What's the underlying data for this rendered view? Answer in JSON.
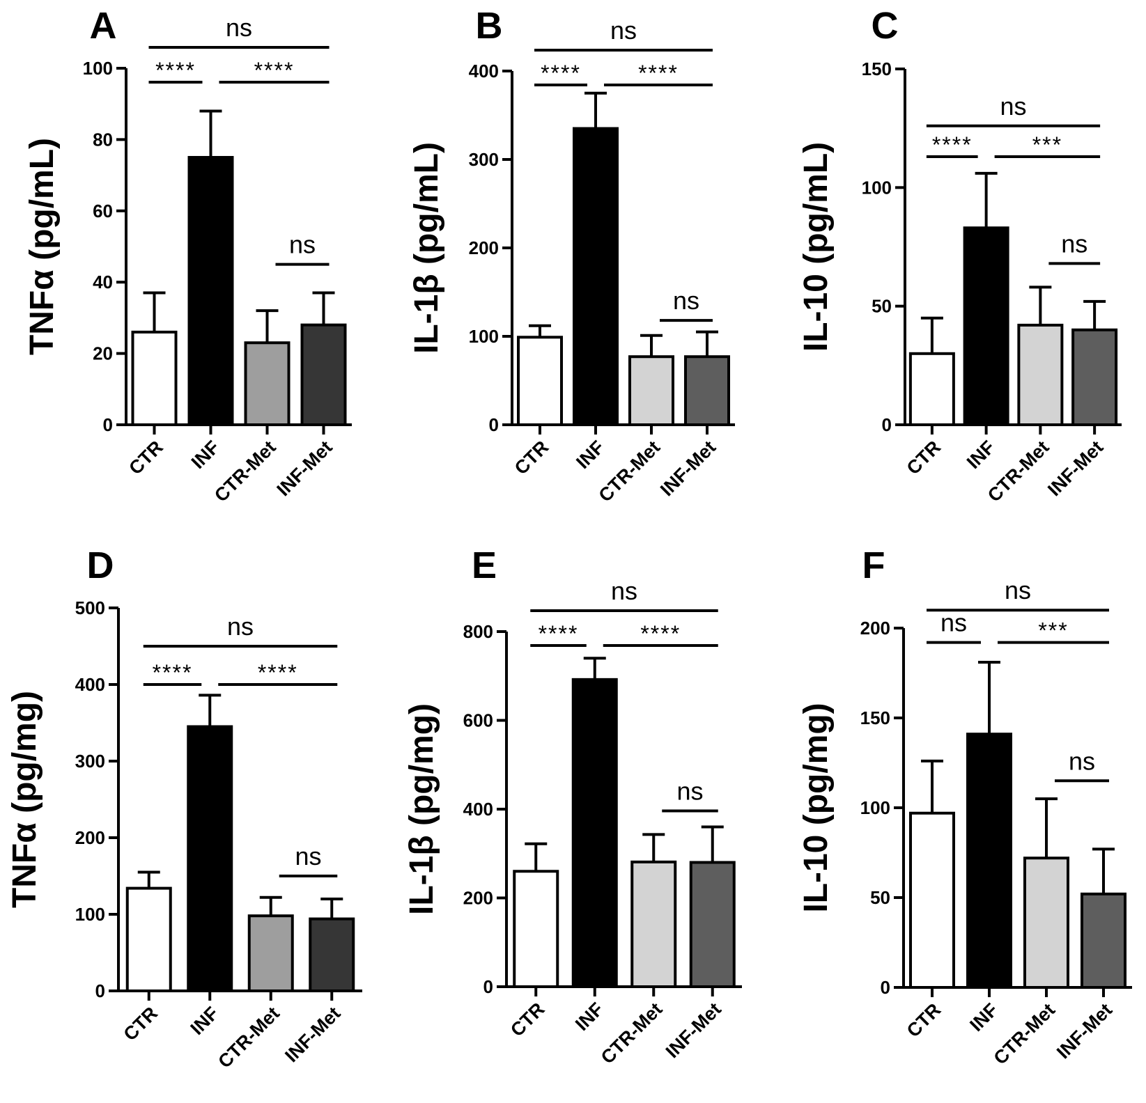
{
  "chart_data": [
    {
      "type": "bar",
      "panel": "A",
      "ylabel": "TNFα (pg/mL)",
      "ylim": [
        0,
        100
      ],
      "yticks": [
        0,
        20,
        40,
        60,
        80,
        100
      ],
      "categories": [
        "CTR",
        "INF",
        "CTR-Met",
        "INF-Met"
      ],
      "values": [
        26,
        75,
        23,
        28
      ],
      "errors": [
        11,
        13,
        9,
        9
      ],
      "bar_colors": [
        "#ffffff",
        "#000000",
        "#9e9e9e",
        "#363636"
      ],
      "comparisons": [
        {
          "from": 0,
          "to": 3,
          "label": "ns",
          "level": 2,
          "extend": 0
        },
        {
          "from": 0,
          "to": 1,
          "label": "****",
          "level": 1,
          "extend": 0
        },
        {
          "from": 1,
          "to": 3,
          "label": "****",
          "level": 1,
          "extend": 0
        },
        {
          "from": 2,
          "to": 3,
          "label": "ns",
          "at": 45
        }
      ]
    },
    {
      "type": "bar",
      "panel": "B",
      "ylabel": "IL-1β (pg/mL)",
      "ylim": [
        0,
        400
      ],
      "yticks": [
        0,
        100,
        200,
        300,
        400
      ],
      "categories": [
        "CTR",
        "INF",
        "CTR-Met",
        "INF-Met"
      ],
      "values": [
        99,
        335,
        77,
        77
      ],
      "errors": [
        13,
        40,
        24,
        28
      ],
      "bar_colors": [
        "#ffffff",
        "#000000",
        "#d3d3d3",
        "#5e5e5e"
      ],
      "comparisons": [
        {
          "from": 0,
          "to": 3,
          "label": "ns",
          "level": 2,
          "extend": 0
        },
        {
          "from": 0,
          "to": 1,
          "label": "****",
          "level": 1,
          "extend": 0
        },
        {
          "from": 1,
          "to": 3,
          "label": "****",
          "level": 1,
          "extend": 0
        },
        {
          "from": 2,
          "to": 3,
          "label": "ns",
          "at": 118
        }
      ]
    },
    {
      "type": "bar",
      "panel": "C",
      "ylabel": "IL-10 (pg/mL)",
      "ylim": [
        0,
        150
      ],
      "yticks": [
        0,
        50,
        100,
        150
      ],
      "categories": [
        "CTR",
        "INF",
        "CTR-Met",
        "INF-Met"
      ],
      "values": [
        30,
        83,
        42,
        40
      ],
      "errors": [
        15,
        23,
        16,
        12
      ],
      "bar_colors": [
        "#ffffff",
        "#000000",
        "#d3d3d3",
        "#5e5e5e"
      ],
      "comparisons": [
        {
          "from": 0,
          "to": 3,
          "label": "ns",
          "at": 126
        },
        {
          "from": 0,
          "to": 1,
          "label": "****",
          "at": 113
        },
        {
          "from": 1,
          "to": 3,
          "label": "***",
          "at": 113
        },
        {
          "from": 2,
          "to": 3,
          "label": "ns",
          "at": 68
        }
      ]
    },
    {
      "type": "bar",
      "panel": "D",
      "ylabel": "TNFα (pg/mg)",
      "ylim": [
        0,
        500
      ],
      "yticks": [
        0,
        100,
        200,
        300,
        400,
        500
      ],
      "categories": [
        "CTR",
        "INF",
        "CTR-Met",
        "INF-Met"
      ],
      "values": [
        134,
        345,
        98,
        94
      ],
      "errors": [
        21,
        41,
        24,
        26
      ],
      "bar_colors": [
        "#ffffff",
        "#000000",
        "#9e9e9e",
        "#363636"
      ],
      "comparisons": [
        {
          "from": 0,
          "to": 3,
          "label": "ns",
          "at": 450
        },
        {
          "from": 0,
          "to": 1,
          "label": "****",
          "at": 400
        },
        {
          "from": 1,
          "to": 3,
          "label": "****",
          "at": 400
        },
        {
          "from": 2,
          "to": 3,
          "label": "ns",
          "at": 150
        }
      ]
    },
    {
      "type": "bar",
      "panel": "E",
      "ylabel": "IL-1β (pg/mg)",
      "ylim": [
        0,
        800
      ],
      "yticks": [
        0,
        200,
        400,
        600,
        800
      ],
      "categories": [
        "CTR",
        "INF",
        "CTR-Met",
        "INF-Met"
      ],
      "values": [
        260,
        692,
        281,
        280
      ],
      "errors": [
        62,
        48,
        62,
        80
      ],
      "bar_colors": [
        "#ffffff",
        "#000000",
        "#d3d3d3",
        "#5e5e5e"
      ],
      "comparisons": [
        {
          "from": 0,
          "to": 3,
          "label": "ns",
          "level": 2,
          "extend": 0
        },
        {
          "from": 0,
          "to": 1,
          "label": "****",
          "level": 1,
          "extend": 0
        },
        {
          "from": 1,
          "to": 3,
          "label": "****",
          "level": 1,
          "extend": 0
        },
        {
          "from": 2,
          "to": 3,
          "label": "ns",
          "at": 396
        }
      ]
    },
    {
      "type": "bar",
      "panel": "F",
      "ylabel": "IL-10 (pg/mg)",
      "ylim": [
        0,
        200
      ],
      "yticks": [
        0,
        50,
        100,
        150,
        200
      ],
      "categories": [
        "CTR",
        "INF",
        "CTR-Met",
        "INF-Met"
      ],
      "values": [
        97,
        141,
        72,
        52
      ],
      "errors": [
        29,
        40,
        33,
        25
      ],
      "bar_colors": [
        "#ffffff",
        "#000000",
        "#d3d3d3",
        "#5e5e5e"
      ],
      "comparisons": [
        {
          "from": 0,
          "to": 3,
          "label": "ns",
          "at": 210
        },
        {
          "from": 0,
          "to": 1,
          "label": "ns",
          "at": 192
        },
        {
          "from": 1,
          "to": 3,
          "label": "***",
          "at": 192
        },
        {
          "from": 2,
          "to": 3,
          "label": "ns",
          "at": 115
        }
      ]
    }
  ]
}
